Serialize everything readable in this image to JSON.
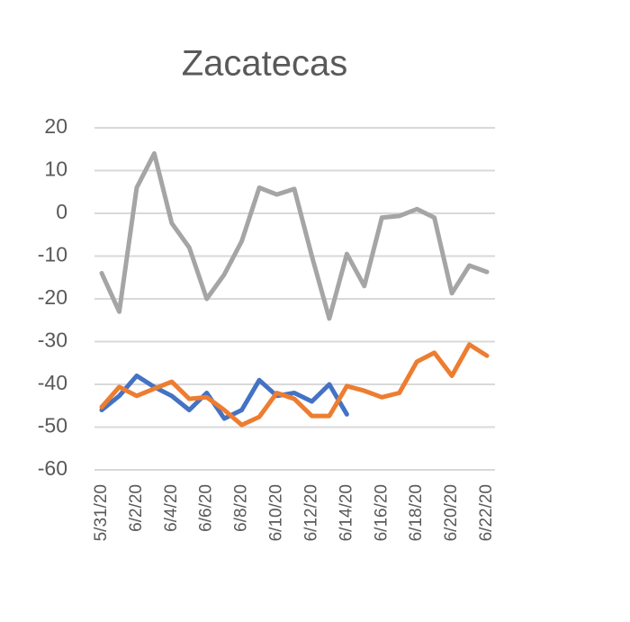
{
  "chart_data": {
    "type": "line",
    "title": "Zacatecas",
    "categories": [
      "5/31/20",
      null,
      "6/2/20",
      null,
      "6/4/20",
      null,
      "6/6/20",
      null,
      "6/8/20",
      null,
      "6/10/20",
      null,
      "6/12/20",
      null,
      "6/14/20",
      null,
      "6/16/20",
      null,
      "6/18/20",
      null,
      "6/20/20",
      null,
      "6/22/20"
    ],
    "series": [
      {
        "color": "#a5a5a5",
        "values": [
          -14,
          -23,
          6,
          14,
          -2.3,
          -8,
          -20,
          -14.3,
          -6.5,
          6,
          4.4,
          5.7,
          -10,
          -24.6,
          -9.5,
          -17,
          -1,
          -0.6,
          1,
          -1,
          -18.7,
          -12.2,
          -13.7
        ]
      },
      {
        "color": "#4472c4",
        "values": [
          -46,
          -42.7,
          -38,
          -40.6,
          -42.7,
          -46,
          -42,
          -48,
          -46,
          -39,
          -42.7,
          -42,
          -44,
          -40,
          -47,
          null,
          null,
          null,
          null,
          null,
          null,
          null,
          null
        ]
      },
      {
        "color": "#ed7d31",
        "values": [
          -45.3,
          -40.6,
          -42.7,
          -41,
          -39.4,
          -43.4,
          -43,
          -46,
          -49.5,
          -47.6,
          -42,
          -43.4,
          -47.4,
          -47.4,
          -40.4,
          -41.5,
          -43,
          -42,
          -34.7,
          -32.6,
          -38,
          -30.7,
          -33.3
        ]
      }
    ],
    "ylim": [
      -60,
      20
    ],
    "yticks": [
      -60,
      -50,
      -40,
      -30,
      -20,
      -10,
      0,
      10,
      20
    ],
    "grid": true
  }
}
